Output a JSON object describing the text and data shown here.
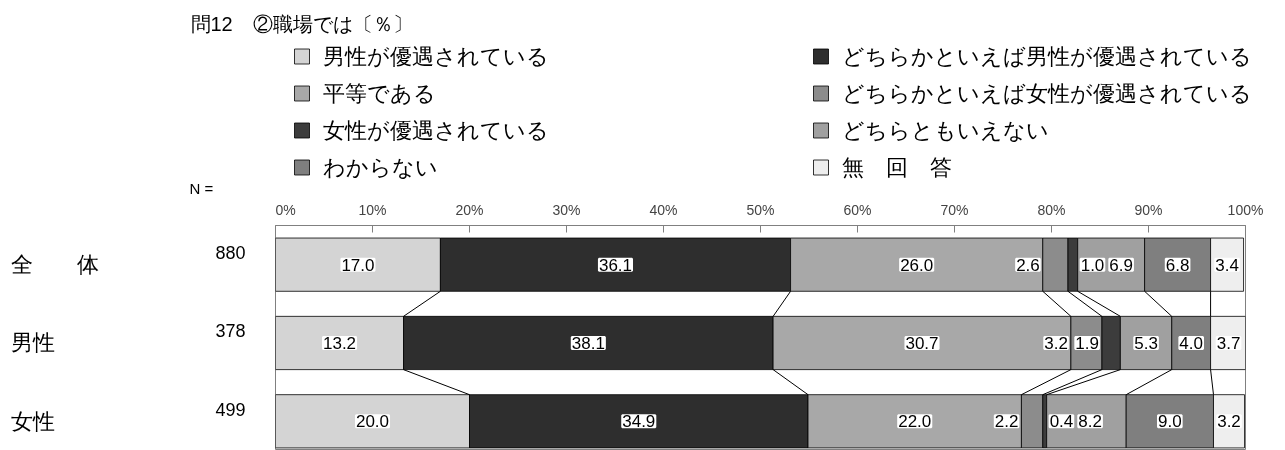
{
  "chart_data": {
    "type": "bar",
    "orientation": "horizontal",
    "stacked": true,
    "title": "問12　②職場では〔％〕",
    "categories": [
      "全　　体",
      "男性",
      "女性"
    ],
    "xlim": [
      0,
      100
    ],
    "xticks": [
      {
        "value": 0,
        "label": "0%"
      },
      {
        "value": 10,
        "label": "10%"
      },
      {
        "value": 20,
        "label": "20%"
      },
      {
        "value": 30,
        "label": "30%"
      },
      {
        "value": 40,
        "label": "40%"
      },
      {
        "value": 50,
        "label": "50%"
      },
      {
        "value": 60,
        "label": "60%"
      },
      {
        "value": 70,
        "label": "70%"
      },
      {
        "value": 80,
        "label": "80%"
      },
      {
        "value": 90,
        "label": "90%"
      },
      {
        "value": 100,
        "label": "100%"
      }
    ],
    "series": [
      {
        "name": "男性が優遇されている",
        "color": "#d4d4d4",
        "values": [
          17.0,
          13.2,
          20.0
        ],
        "value_labels": [
          "17.0",
          "13.2",
          "20.0"
        ]
      },
      {
        "name": "どちらかといえば男性が優遇されている",
        "color": "#2e2e2e",
        "values": [
          36.1,
          38.1,
          34.9
        ],
        "value_labels": [
          "36.1",
          "38.1",
          "34.9"
        ]
      },
      {
        "name": "平等である",
        "color": "#a8a8a8",
        "values": [
          26.0,
          30.7,
          22.0
        ],
        "value_labels": [
          "26.0",
          "30.7",
          "22.0"
        ]
      },
      {
        "name": "どちらかといえば女性が優遇されている",
        "color": "#8c8c8c",
        "values": [
          2.6,
          3.2,
          2.2
        ],
        "value_labels": [
          "2.6",
          "3.2",
          "2.2"
        ]
      },
      {
        "name": "女性が優遇されている",
        "color": "#3c3c3c",
        "values": [
          1.0,
          1.9,
          0.4
        ],
        "value_labels": [
          "1.0",
          "1.9",
          "0.4"
        ]
      },
      {
        "name": "どちらともいえない",
        "color": "#a0a0a0",
        "values": [
          6.9,
          5.3,
          8.2
        ],
        "value_labels": [
          "6.9",
          "5.3",
          "8.2"
        ]
      },
      {
        "name": "わからない",
        "color": "#7f7f7f",
        "values": [
          6.8,
          4.0,
          9.0
        ],
        "value_labels": [
          "6.8",
          "4.0",
          "9.0"
        ]
      },
      {
        "name": "無　回　答",
        "color": "#eeeeee",
        "values": [
          3.4,
          3.7,
          3.2
        ],
        "value_labels": [
          "3.4",
          "3.7",
          "3.2"
        ]
      }
    ],
    "legend": "top",
    "annotations": [
      "N =",
      "880",
      "378",
      "499"
    ]
  }
}
